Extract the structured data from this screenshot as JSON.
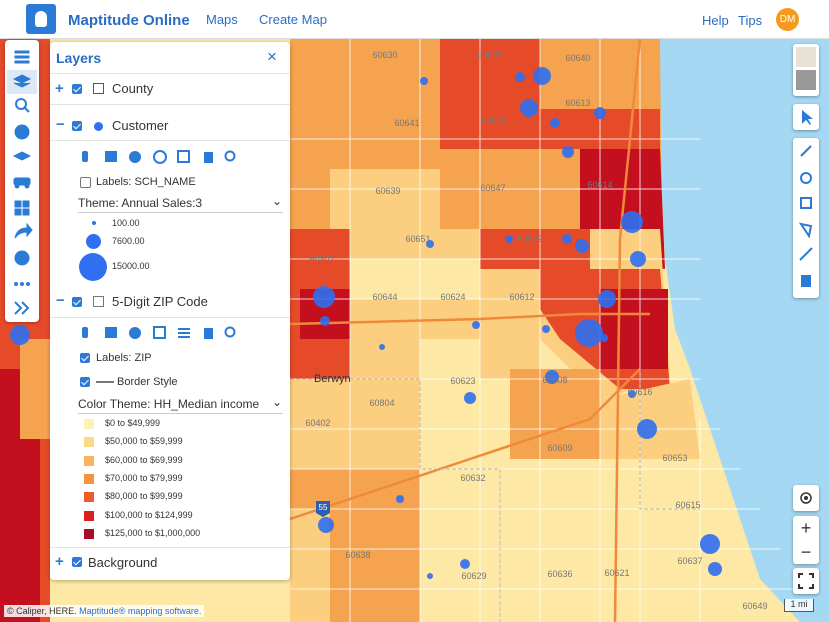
{
  "header": {
    "app_title": "Maptitude Online",
    "nav": [
      "Maps",
      "Create Map"
    ],
    "help": "Help",
    "tips": "Tips",
    "avatar": "DM"
  },
  "layers_panel": {
    "title": "Layers",
    "county": {
      "name": "County"
    },
    "customer": {
      "name": "Customer",
      "labels": "Labels: SCH_NAME",
      "theme": "Theme: Annual Sales:3",
      "sizes": [
        "100.00",
        "7600.00",
        "15000.00"
      ]
    },
    "zip": {
      "name": "5-Digit ZIP Code",
      "labels": "Labels: ZIP",
      "border": "Border Style",
      "theme": "Color Theme: HH_Median income",
      "legend": [
        "$0 to $49,999",
        "$50,000 to $59,999",
        "$60,000 to $69,999",
        "$70,000 to $79,999",
        "$80,000 to $99,999",
        "$100,000 to $124,999",
        "$125,000 to $1,000,000"
      ]
    },
    "background": {
      "name": "Background"
    }
  },
  "map": {
    "zip_labels": [
      "60630",
      "60625",
      "60640",
      "60641",
      "60613",
      "60618",
      "60639",
      "60614",
      "60647",
      "60651",
      "60622",
      "60644",
      "60624",
      "60612",
      "60302",
      "60804",
      "60623",
      "60608",
      "60616",
      "60402",
      "60632",
      "60609",
      "60653",
      "60615",
      "60638",
      "60629",
      "60636",
      "60621",
      "60637",
      "60649"
    ],
    "place": "Berwyn",
    "highway": "55",
    "attribution": "© Caliper, HERE.",
    "attribution_link": "Maptitude® mapping software.",
    "scale": "1 mi"
  }
}
